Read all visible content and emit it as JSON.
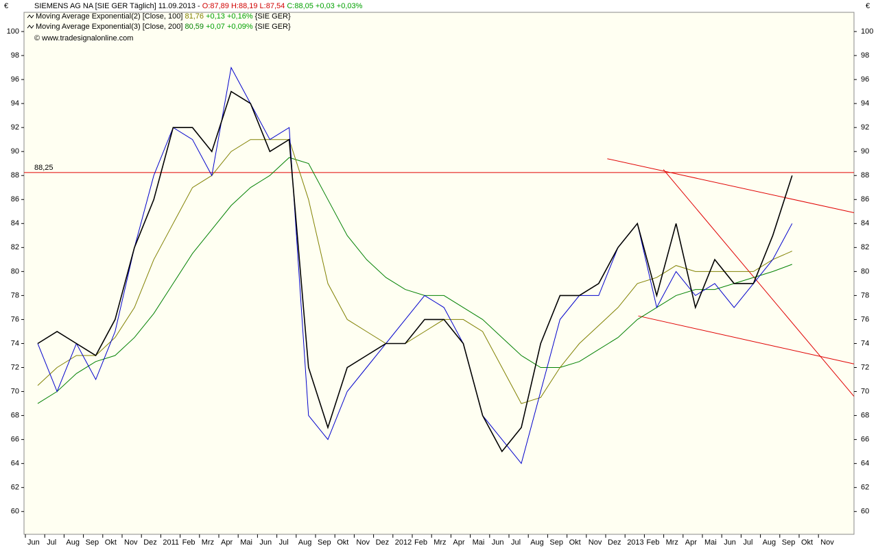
{
  "chart_data": {
    "type": "line",
    "currency": "€",
    "header": {
      "title": "SIEMENS AG NA [SIE GER  Täglich] 11.09.2013 -",
      "ohl": "O:87,89 H:88,19 L:87,54",
      "close": "C:88,05 +0,03 +0,03%"
    },
    "source": "© www.tradesignalonline.com",
    "categories": [
      "Jun",
      "Jul",
      "Aug",
      "Sep",
      "Okt",
      "Nov",
      "Dez",
      "2011",
      "Feb",
      "Mrz",
      "Apr",
      "Mai",
      "Jun",
      "Jul",
      "Aug",
      "Sep",
      "Okt",
      "Nov",
      "Dez",
      "2012",
      "Feb",
      "Mrz",
      "Apr",
      "Mai",
      "Jun",
      "Jul",
      "Aug",
      "Sep",
      "Okt",
      "Nov",
      "Dez",
      "2013",
      "Feb",
      "Mrz",
      "Apr",
      "Mai",
      "Jun",
      "Jul",
      "Aug",
      "Sep",
      "Okt",
      "Nov"
    ],
    "series": [
      {
        "color": "#000000",
        "values": [
          74,
          75,
          74,
          73,
          76,
          82,
          86,
          92,
          92,
          90,
          95,
          94,
          90,
          91,
          72,
          67,
          72,
          73,
          74,
          74,
          76,
          76,
          74,
          68,
          65,
          67,
          74,
          78,
          78,
          79,
          82,
          84,
          78,
          84,
          77,
          81,
          79,
          79,
          83,
          88,
          null,
          null
        ]
      },
      {
        "color": "#0000cc",
        "values": [
          74,
          70,
          74,
          71,
          75,
          82,
          88,
          92,
          91,
          88,
          97,
          94,
          91,
          92,
          68,
          66,
          70,
          72,
          74,
          76,
          78,
          77,
          74,
          68,
          66,
          64,
          70,
          76,
          78,
          78,
          82,
          84,
          77,
          80,
          78,
          79,
          77,
          79,
          81,
          84,
          null,
          null
        ]
      },
      {
        "name": "Moving Average Exponential(2) [Close, 100]",
        "legend_value": "81,76",
        "legend_change": "+0,13 +0,16%",
        "legend_suffix": "{SIE GER}",
        "color": "#808000",
        "values": [
          70.5,
          72,
          73,
          73,
          74.5,
          77,
          81,
          84,
          87,
          88,
          90,
          91,
          91,
          91,
          86,
          79,
          76,
          75,
          74,
          74,
          75,
          76,
          76,
          75,
          72,
          69,
          69.5,
          72,
          74,
          75.5,
          77,
          79,
          79.5,
          80.5,
          80,
          80,
          80,
          80,
          81,
          81.7,
          null,
          null
        ]
      },
      {
        "name": "Moving Average Exponential(3) [Close, 200]",
        "legend_value": "80,59",
        "legend_change": "+0,07 +0,09%",
        "legend_suffix": "{SIE GER}",
        "color": "#008000",
        "values": [
          69,
          70,
          71.5,
          72.5,
          73,
          74.5,
          76.5,
          79,
          81.5,
          83.5,
          85.5,
          87,
          88,
          89.5,
          89,
          86,
          83,
          81,
          79.5,
          78.5,
          78,
          78,
          77,
          76,
          74.5,
          73,
          72,
          72,
          72.5,
          73.5,
          74.5,
          76,
          77,
          78,
          78.5,
          78.5,
          79,
          79.5,
          80,
          80.6,
          null,
          null
        ]
      }
    ],
    "hline": {
      "value": 88.25,
      "label": "88,25",
      "color": "#e00000"
    },
    "trendlines": [
      {
        "from": [
          29.8,
          89.4
        ],
        "to": [
          42.55,
          84.9
        ]
      },
      {
        "from": [
          31.4,
          76.3
        ],
        "to": [
          42.55,
          72.3
        ]
      },
      {
        "from": [
          32.7,
          88.5
        ],
        "to": [
          42.55,
          69.6
        ]
      }
    ],
    "ylim": [
      58.1,
      101.6
    ],
    "yticks": [
      60,
      62,
      64,
      66,
      68,
      70,
      72,
      74,
      76,
      78,
      80,
      82,
      84,
      86,
      88,
      90,
      92,
      94,
      96,
      98,
      100
    ]
  }
}
